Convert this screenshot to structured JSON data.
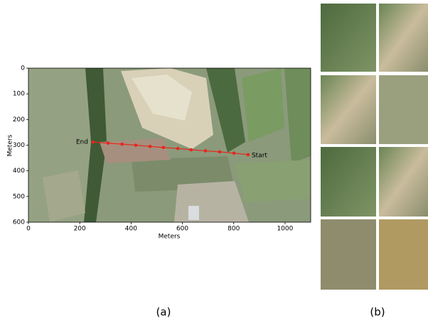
{
  "chart_data": {
    "type": "line",
    "x": [
      252,
      310,
      365,
      418,
      474,
      526,
      582,
      634,
      690,
      745,
      801,
      856
    ],
    "series": [
      {
        "color": "#e8261c",
        "values": [
          288,
          292,
          296,
          300,
          305,
          309,
          313,
          318,
          322,
          326,
          331,
          337
        ]
      }
    ],
    "xlabel": "Meters",
    "ylabel": "Meters",
    "xlim": [
      0,
      1100
    ],
    "ylim": [
      600,
      0
    ],
    "xticks": [
      0,
      200,
      400,
      600,
      800,
      1000
    ],
    "yticks": [
      0,
      100,
      200,
      300,
      400,
      500,
      600
    ],
    "end_label": "End",
    "start_label": "Start"
  },
  "panel_labels": [
    "(a)",
    "(b)"
  ]
}
